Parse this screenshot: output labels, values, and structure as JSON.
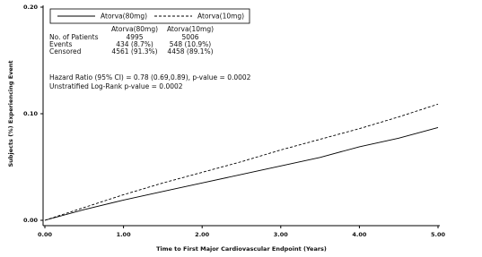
{
  "chart_data": {
    "type": "line",
    "xlabel": "Time to First Major Cardiovascular Endpoint (Years)",
    "ylabel": "Subjects (%) Experiencing Event",
    "x": [
      0,
      0.5,
      1,
      1.5,
      2,
      2.5,
      3,
      3.5,
      4,
      4.5,
      5
    ],
    "series": [
      {
        "name": "Atorva(80mg)",
        "color": "#000000",
        "style": "solid",
        "values": [
          0,
          0.01,
          0.019,
          0.027,
          0.035,
          0.043,
          0.051,
          0.059,
          0.069,
          0.077,
          0.087
        ]
      },
      {
        "name": "Atorva(10mg)",
        "color": "#000000",
        "style": "dashed",
        "values": [
          0,
          0.012,
          0.024,
          0.035,
          0.045,
          0.055,
          0.066,
          0.076,
          0.086,
          0.097,
          0.109
        ]
      }
    ],
    "xlim": [
      0,
      5
    ],
    "ylim": [
      0,
      0.2
    ],
    "xticks": [
      {
        "value": 0,
        "label": "0.00"
      },
      {
        "value": 1,
        "label": "1.00"
      },
      {
        "value": 2,
        "label": "2.00"
      },
      {
        "value": 3,
        "label": "3.00"
      },
      {
        "value": 4,
        "label": "4.00"
      },
      {
        "value": 5,
        "label": "5.00"
      }
    ],
    "yticks": [
      {
        "value": 0,
        "label": "0.00"
      },
      {
        "value": 0.1,
        "label": "0.10"
      },
      {
        "value": 0.2,
        "label": "0.20"
      }
    ],
    "legend": "top-left",
    "stats_table": {
      "columns": [
        "Atorva(80mg)",
        "Atorva(10mg)"
      ],
      "rows": [
        {
          "label": "No. of Patients",
          "values": [
            "4995",
            "5006"
          ]
        },
        {
          "label": "Events",
          "values": [
            "434 (8.7%)",
            "548 (10.9%)"
          ]
        },
        {
          "label": "Censored",
          "values": [
            "4561 (91.3%)",
            "4458 (89.1%)"
          ]
        }
      ]
    },
    "annotations": [
      "Hazard Ratio (95% CI) = 0.78 (0.69,0.89), p-value = 0.0002",
      "Unstratified Log-Rank p-value = 0.0002"
    ]
  }
}
